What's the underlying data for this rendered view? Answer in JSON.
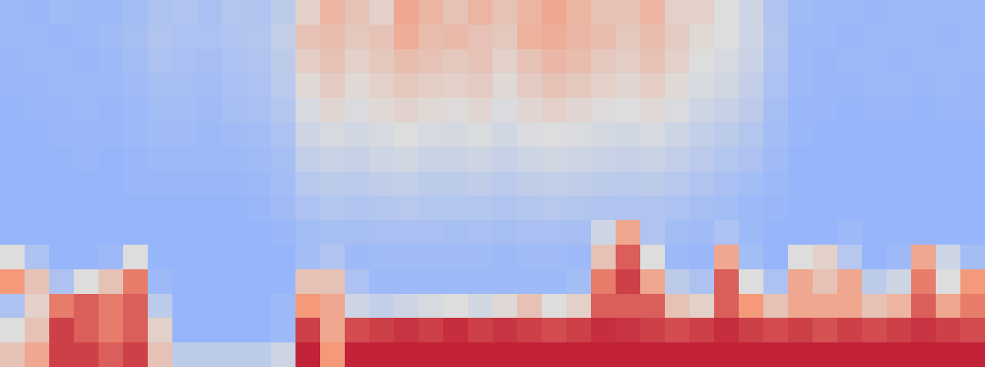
{
  "chart_data": {
    "type": "heatmap",
    "tick_labels": false,
    "zlim": [
      0,
      1
    ],
    "cells": [
      [
        0.3,
        0.29,
        0.31,
        0.3,
        0.3,
        0.32,
        0.35,
        0.36,
        0.34,
        0.37,
        0.36,
        0.4,
        0.55,
        0.65,
        0.6,
        0.55,
        0.7,
        0.65,
        0.6,
        0.65,
        0.6,
        0.65,
        0.7,
        0.65,
        0.6,
        0.6,
        0.65,
        0.55,
        0.55,
        0.5,
        0.45,
        0.36,
        0.31,
        0.3,
        0.3,
        0.29,
        0.3,
        0.3,
        0.3,
        0.3
      ],
      [
        0.3,
        0.3,
        0.29,
        0.3,
        0.31,
        0.33,
        0.36,
        0.35,
        0.35,
        0.36,
        0.37,
        0.42,
        0.6,
        0.62,
        0.58,
        0.6,
        0.68,
        0.62,
        0.63,
        0.6,
        0.58,
        0.66,
        0.68,
        0.64,
        0.62,
        0.58,
        0.62,
        0.57,
        0.52,
        0.5,
        0.45,
        0.37,
        0.3,
        0.3,
        0.29,
        0.3,
        0.3,
        0.3,
        0.29,
        0.3
      ],
      [
        0.29,
        0.3,
        0.3,
        0.29,
        0.3,
        0.32,
        0.35,
        0.34,
        0.33,
        0.35,
        0.36,
        0.4,
        0.56,
        0.6,
        0.55,
        0.58,
        0.62,
        0.6,
        0.58,
        0.6,
        0.55,
        0.6,
        0.64,
        0.62,
        0.58,
        0.56,
        0.6,
        0.55,
        0.5,
        0.48,
        0.44,
        0.36,
        0.3,
        0.29,
        0.3,
        0.3,
        0.29,
        0.3,
        0.3,
        0.3
      ],
      [
        0.29,
        0.29,
        0.3,
        0.3,
        0.3,
        0.31,
        0.33,
        0.33,
        0.32,
        0.34,
        0.35,
        0.39,
        0.52,
        0.57,
        0.52,
        0.55,
        0.58,
        0.56,
        0.55,
        0.57,
        0.52,
        0.57,
        0.6,
        0.58,
        0.55,
        0.53,
        0.56,
        0.52,
        0.48,
        0.46,
        0.42,
        0.35,
        0.3,
        0.29,
        0.29,
        0.3,
        0.3,
        0.29,
        0.3,
        0.29
      ],
      [
        0.28,
        0.29,
        0.29,
        0.3,
        0.29,
        0.3,
        0.32,
        0.32,
        0.31,
        0.33,
        0.34,
        0.37,
        0.48,
        0.53,
        0.49,
        0.52,
        0.54,
        0.52,
        0.51,
        0.53,
        0.49,
        0.53,
        0.55,
        0.53,
        0.51,
        0.5,
        0.52,
        0.49,
        0.45,
        0.43,
        0.4,
        0.33,
        0.29,
        0.29,
        0.28,
        0.29,
        0.29,
        0.28,
        0.29,
        0.29
      ],
      [
        0.28,
        0.28,
        0.29,
        0.29,
        0.29,
        0.3,
        0.31,
        0.31,
        0.3,
        0.31,
        0.32,
        0.35,
        0.45,
        0.48,
        0.46,
        0.48,
        0.5,
        0.48,
        0.47,
        0.49,
        0.46,
        0.49,
        0.5,
        0.49,
        0.47,
        0.46,
        0.48,
        0.45,
        0.42,
        0.4,
        0.37,
        0.32,
        0.29,
        0.28,
        0.28,
        0.28,
        0.28,
        0.28,
        0.28,
        0.28
      ],
      [
        0.28,
        0.28,
        0.28,
        0.29,
        0.28,
        0.29,
        0.3,
        0.3,
        0.3,
        0.3,
        0.31,
        0.33,
        0.42,
        0.44,
        0.43,
        0.45,
        0.46,
        0.44,
        0.44,
        0.45,
        0.43,
        0.45,
        0.46,
        0.45,
        0.44,
        0.43,
        0.44,
        0.42,
        0.39,
        0.37,
        0.35,
        0.31,
        0.28,
        0.28,
        0.28,
        0.28,
        0.28,
        0.28,
        0.28,
        0.28
      ],
      [
        0.28,
        0.28,
        0.28,
        0.28,
        0.28,
        0.29,
        0.29,
        0.29,
        0.29,
        0.29,
        0.3,
        0.32,
        0.38,
        0.4,
        0.39,
        0.41,
        0.42,
        0.4,
        0.4,
        0.41,
        0.39,
        0.41,
        0.42,
        0.41,
        0.4,
        0.39,
        0.4,
        0.38,
        0.36,
        0.34,
        0.32,
        0.3,
        0.28,
        0.28,
        0.28,
        0.28,
        0.28,
        0.28,
        0.28,
        0.28
      ],
      [
        0.28,
        0.28,
        0.28,
        0.28,
        0.28,
        0.28,
        0.28,
        0.28,
        0.28,
        0.28,
        0.29,
        0.31,
        0.35,
        0.37,
        0.36,
        0.37,
        0.38,
        0.37,
        0.37,
        0.37,
        0.36,
        0.37,
        0.38,
        0.37,
        0.36,
        0.36,
        0.36,
        0.35,
        0.33,
        0.32,
        0.3,
        0.29,
        0.28,
        0.28,
        0.28,
        0.28,
        0.28,
        0.28,
        0.28,
        0.28
      ],
      [
        0.28,
        0.28,
        0.28,
        0.28,
        0.28,
        0.28,
        0.28,
        0.28,
        0.28,
        0.28,
        0.28,
        0.29,
        0.32,
        0.33,
        0.33,
        0.34,
        0.34,
        0.34,
        0.33,
        0.34,
        0.33,
        0.34,
        0.34,
        0.33,
        0.45,
        0.7,
        0.36,
        0.32,
        0.31,
        0.35,
        0.3,
        0.28,
        0.28,
        0.28,
        0.3,
        0.28,
        0.28,
        0.28,
        0.28,
        0.28
      ],
      [
        0.5,
        0.35,
        0.28,
        0.28,
        0.3,
        0.5,
        0.28,
        0.28,
        0.28,
        0.28,
        0.28,
        0.28,
        0.32,
        0.36,
        0.3,
        0.31,
        0.31,
        0.31,
        0.31,
        0.31,
        0.3,
        0.31,
        0.31,
        0.3,
        0.6,
        0.85,
        0.5,
        0.3,
        0.29,
        0.7,
        0.32,
        0.28,
        0.5,
        0.55,
        0.38,
        0.28,
        0.3,
        0.7,
        0.45,
        0.32
      ],
      [
        0.75,
        0.6,
        0.35,
        0.5,
        0.6,
        0.8,
        0.3,
        0.28,
        0.28,
        0.28,
        0.28,
        0.28,
        0.6,
        0.6,
        0.35,
        0.3,
        0.3,
        0.3,
        0.3,
        0.3,
        0.3,
        0.3,
        0.3,
        0.32,
        0.8,
        0.9,
        0.7,
        0.4,
        0.35,
        0.85,
        0.5,
        0.35,
        0.7,
        0.6,
        0.7,
        0.4,
        0.45,
        0.8,
        0.5,
        0.75
      ],
      [
        0.35,
        0.55,
        0.8,
        0.85,
        0.8,
        0.85,
        0.4,
        0.28,
        0.28,
        0.28,
        0.28,
        0.3,
        0.75,
        0.7,
        0.45,
        0.42,
        0.45,
        0.48,
        0.5,
        0.46,
        0.52,
        0.6,
        0.5,
        0.55,
        0.85,
        0.85,
        0.85,
        0.6,
        0.55,
        0.85,
        0.75,
        0.6,
        0.7,
        0.7,
        0.7,
        0.6,
        0.65,
        0.85,
        0.7,
        0.8
      ],
      [
        0.5,
        0.6,
        0.9,
        0.85,
        0.8,
        0.85,
        0.55,
        0.28,
        0.28,
        0.28,
        0.28,
        0.3,
        0.9,
        0.7,
        0.88,
        0.9,
        0.92,
        0.9,
        0.93,
        0.9,
        0.92,
        0.9,
        0.88,
        0.9,
        0.93,
        0.92,
        0.9,
        0.88,
        0.9,
        0.93,
        0.9,
        0.88,
        0.9,
        0.87,
        0.9,
        0.88,
        0.9,
        0.92,
        0.9,
        0.88
      ],
      [
        0.6,
        0.7,
        0.9,
        0.9,
        0.85,
        0.9,
        0.6,
        0.4,
        0.4,
        0.4,
        0.4,
        0.45,
        0.95,
        0.75,
        0.95,
        0.95,
        0.95,
        0.95,
        0.95,
        0.95,
        0.95,
        0.95,
        0.95,
        0.95,
        0.95,
        0.95,
        0.95,
        0.95,
        0.95,
        0.95,
        0.95,
        0.95,
        0.95,
        0.95,
        0.95,
        0.95,
        0.95,
        0.95,
        0.95,
        0.95
      ]
    ]
  }
}
